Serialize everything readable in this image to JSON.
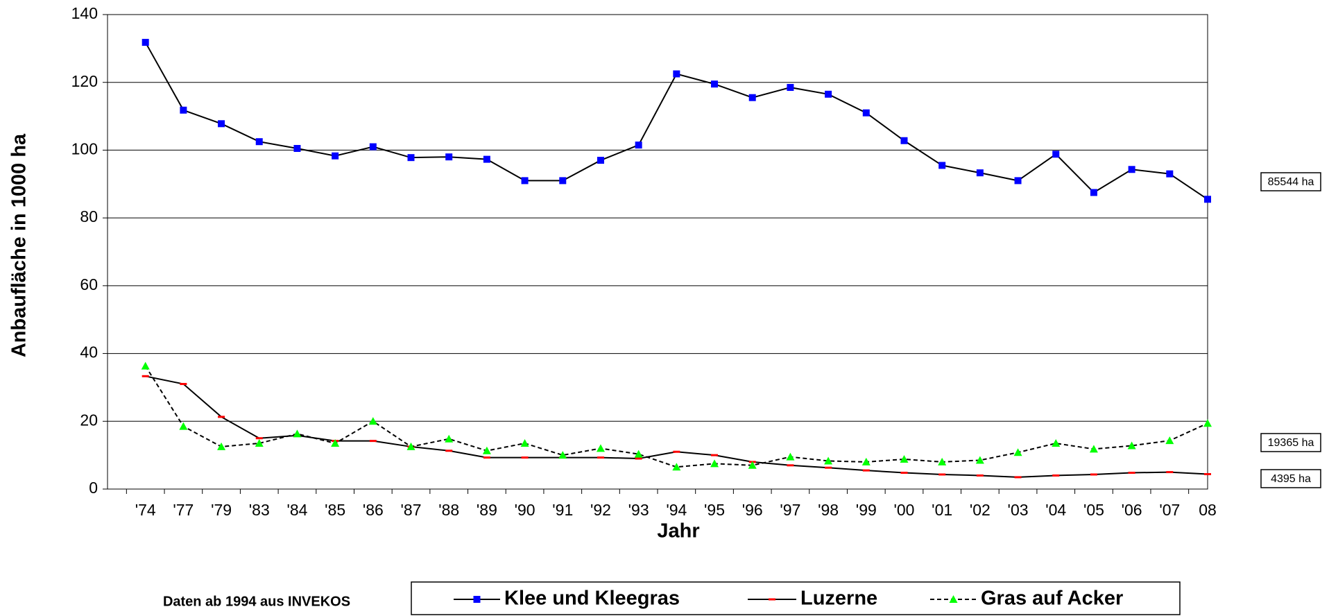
{
  "chart_data": {
    "type": "line",
    "y_label": "Anbaufläche in 1000 ha",
    "x_label": "Jahr",
    "note": "Daten ab 1994 aus INVEKOS",
    "annotations": [
      "85544 ha",
      "19365 ha",
      "4395 ha"
    ],
    "categories": [
      "'74",
      "'77",
      "'79",
      "'83",
      "'84",
      "'85",
      "'86",
      "'87",
      "'88",
      "'89",
      "'90",
      "'91",
      "'92",
      "'93",
      "'94",
      "'95",
      "'96",
      "'97",
      "'98",
      "'99",
      "'00",
      "'01",
      "'02",
      "'03",
      "'04",
      "'05",
      "'06",
      "'07",
      "08"
    ],
    "series": [
      {
        "name": "Klee und Kleegras",
        "color": "#0000ff",
        "line_color": "#000000",
        "marker": "square",
        "dashed": false,
        "values": [
          131.8,
          111.8,
          107.8,
          102.5,
          100.5,
          98.3,
          101,
          97.8,
          98,
          97.3,
          91,
          91,
          97,
          101.5,
          122.5,
          119.5,
          115.5,
          118.5,
          116.5,
          111,
          102.8,
          95.5,
          93.3,
          91,
          98.8,
          87.5,
          94.3,
          93,
          85.5
        ]
      },
      {
        "name": "Luzerne",
        "color": "#ff0000",
        "line_color": "#000000",
        "marker": "dash",
        "dashed": false,
        "values": [
          33.3,
          31,
          21.3,
          15,
          15.8,
          14.2,
          14.2,
          12.5,
          11.3,
          9.3,
          9.3,
          9.3,
          9.3,
          9,
          11,
          10,
          8,
          7,
          6.3,
          5.5,
          4.8,
          4.3,
          4,
          3.5,
          4,
          4.3,
          4.8,
          5,
          4.4
        ]
      },
      {
        "name": "Gras auf Acker",
        "color": "#00ff00",
        "line_color": "#000000",
        "marker": "triangle",
        "dashed": true,
        "values": [
          36.3,
          18.5,
          12.5,
          13.5,
          16.3,
          13.5,
          20,
          12.5,
          14.8,
          11.3,
          13.5,
          10,
          12,
          10.3,
          6.5,
          7.5,
          7,
          9.5,
          8.3,
          8,
          8.8,
          8,
          8.5,
          10.8,
          13.5,
          11.8,
          12.8,
          14.3,
          19.4
        ]
      }
    ],
    "ylim": [
      0,
      140
    ],
    "yticks": [
      0,
      20,
      40,
      60,
      80,
      100,
      120,
      140
    ],
    "grid": true
  }
}
